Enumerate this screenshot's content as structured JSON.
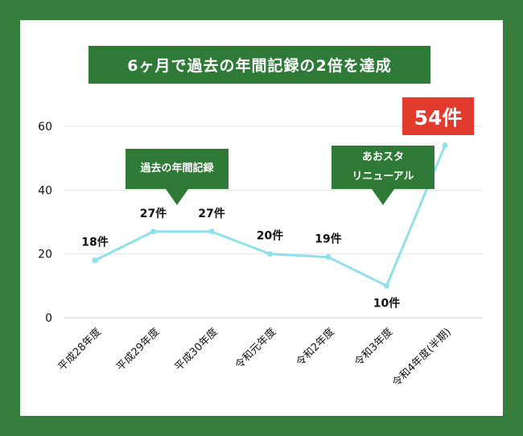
{
  "title": "6ヶ月で過去の年間記録の2倍を達成",
  "highlight_label": "54件",
  "callouts": [
    {
      "lines": [
        "過去の年間記録"
      ]
    },
    {
      "lines": [
        "あおスタ",
        "リニューアル"
      ]
    }
  ],
  "colors": {
    "frame": "#367e3d",
    "banner": "#2f7a37",
    "highlight": "#e23a2c",
    "line": "#8fe0ea",
    "grid": "#e3e3e3",
    "text": "#111111"
  },
  "chart_data": {
    "type": "line",
    "categories": [
      "平成28年度",
      "平成29年度",
      "平成30年度",
      "令和元年度",
      "令和2年度",
      "令和3年度",
      "令和4年度(半期)"
    ],
    "series": [
      {
        "values": [
          18,
          27,
          27,
          20,
          19,
          10,
          54
        ]
      }
    ],
    "data_labels": [
      "18件",
      "27件",
      "27件",
      "20件",
      "19件",
      "10件",
      "54件"
    ],
    "ylim": [
      0,
      60
    ],
    "yticks": [
      "0",
      "20",
      "40",
      "60"
    ],
    "grid": true
  }
}
